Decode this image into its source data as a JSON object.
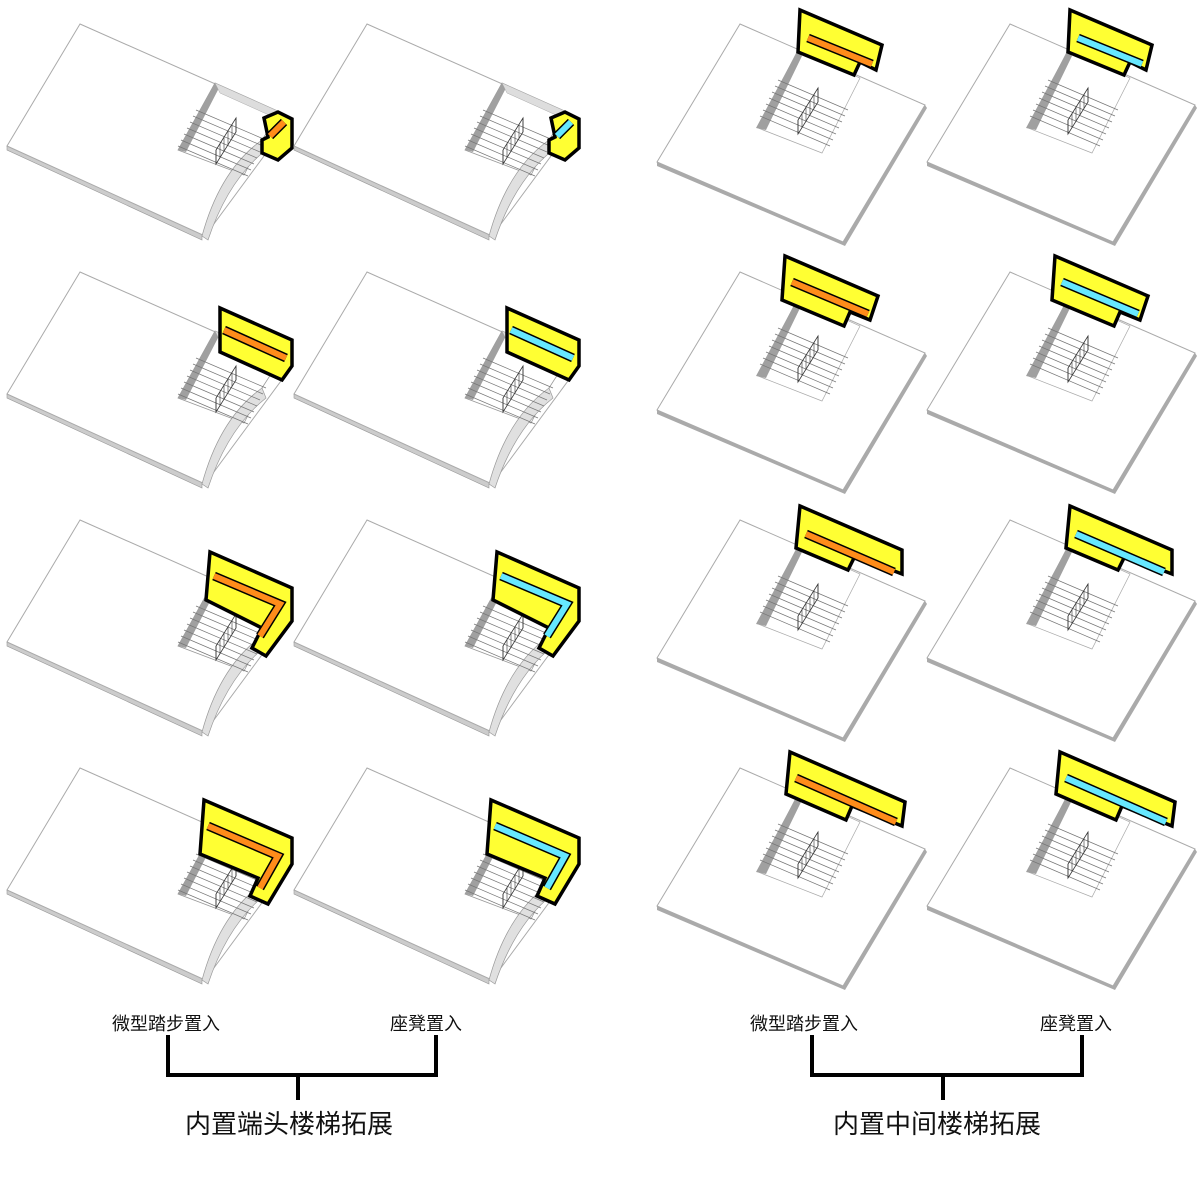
{
  "groups": [
    {
      "sub_left": "微型踏步置入",
      "sub_right": "座凳置入",
      "title": "内置端头楼梯拓展",
      "stair_type": "end"
    },
    {
      "sub_left": "微型踏步置入",
      "sub_right": "座凳置入",
      "title": "内置中间楼梯拓展",
      "stair_type": "middle"
    }
  ],
  "colors": {
    "box": "#ffff33",
    "box_side": "#d6d61a",
    "step_insert": "#ff8c1a",
    "seat_insert": "#66e8ff",
    "wall": "#a0a0a0",
    "outline": "#000000"
  }
}
